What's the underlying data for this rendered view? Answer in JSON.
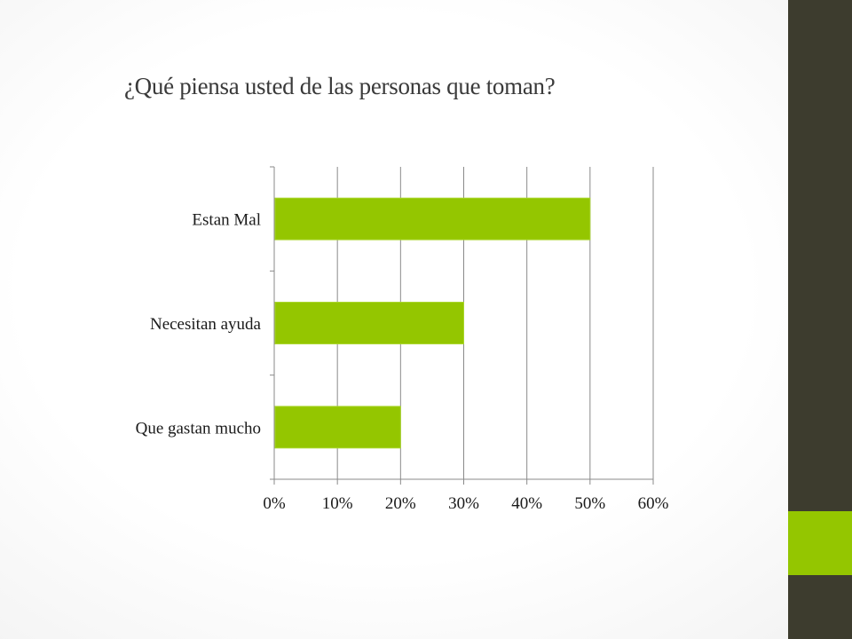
{
  "slide": {
    "title": "¿Qué piensa usted de las personas que toman?",
    "colors": {
      "sidebar": "#3d3c2e",
      "accent": "#94c600",
      "bar": "#94c600",
      "grid": "#8a8a8a"
    }
  },
  "chart_data": {
    "type": "bar",
    "orientation": "horizontal",
    "title": "",
    "xlabel": "",
    "ylabel": "",
    "categories": [
      "Estan Mal",
      "Necesitan ayuda",
      "Que gastan mucho"
    ],
    "values": [
      50,
      30,
      20
    ],
    "value_unit": "%",
    "xlim": [
      0,
      60
    ],
    "x_ticks": [
      "0%",
      "10%",
      "20%",
      "30%",
      "40%",
      "50%",
      "60%"
    ],
    "grid": true,
    "legend": "none"
  }
}
